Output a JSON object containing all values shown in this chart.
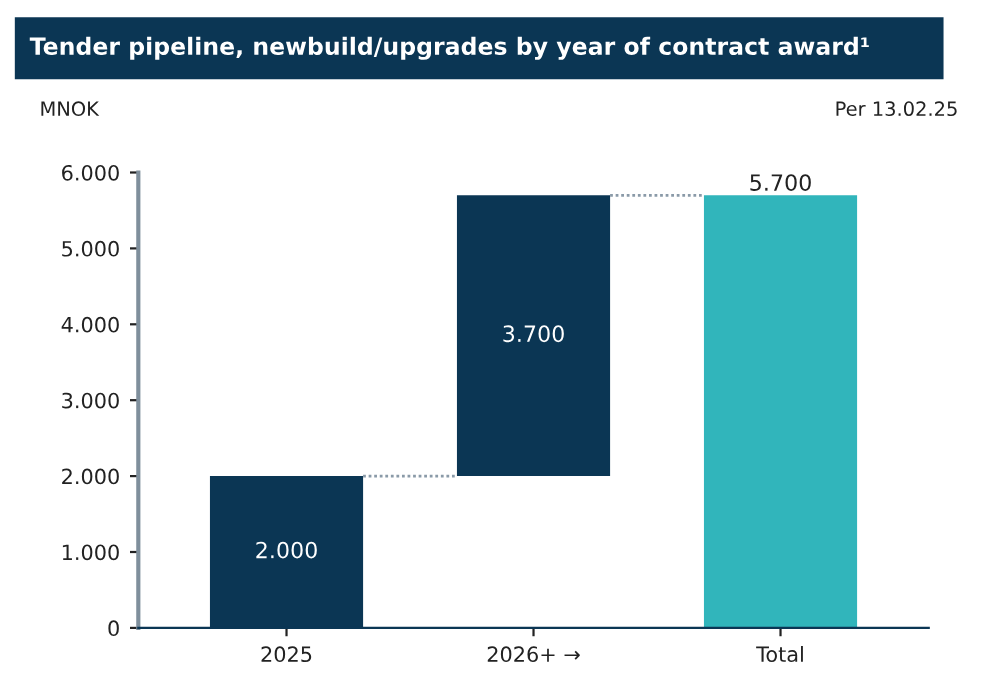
{
  "chart_data": {
    "type": "bar",
    "title": "Tender pipeline, newbuild/upgrades by year of contract award¹",
    "ylabel": "MNOK",
    "annotations": [
      "Per 13.02.25"
    ],
    "categories": [
      "2025",
      "2026+ →",
      "Total"
    ],
    "values": [
      2000,
      3700,
      5700
    ],
    "base": [
      0,
      2000,
      0
    ],
    "colors": [
      "#0b3654",
      "#0b3654",
      "#31b5bb"
    ],
    "value_labels": [
      "2.000",
      "3.700",
      "5.700"
    ],
    "ylim": [
      0,
      6000
    ],
    "yticks": [
      {
        "value": 0,
        "label": "0"
      },
      {
        "value": 1000,
        "label": "1.000"
      },
      {
        "value": 2000,
        "label": "2.000"
      },
      {
        "value": 3000,
        "label": "3.000"
      },
      {
        "value": 4000,
        "label": "4.000"
      },
      {
        "value": 5000,
        "label": "5.000"
      },
      {
        "value": 6000,
        "label": "6.000"
      }
    ],
    "grid": false,
    "legend": false
  }
}
